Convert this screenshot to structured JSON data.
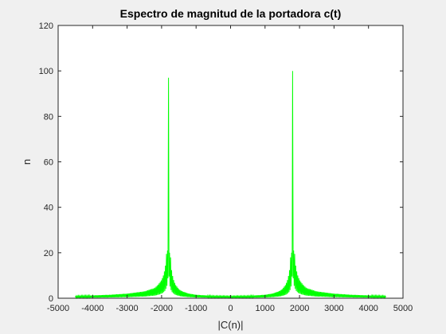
{
  "chart_data": {
    "type": "line",
    "title": "Espectro de magnitud de la portadora c(t)",
    "xlabel": "|C(n)|",
    "ylabel": "n",
    "xlim": [
      -5000,
      5000
    ],
    "ylim": [
      0,
      120
    ],
    "xticks": [
      -5000,
      -4000,
      -3000,
      -2000,
      -1000,
      0,
      1000,
      2000,
      3000,
      4000,
      5000
    ],
    "yticks": [
      0,
      20,
      40,
      60,
      80,
      100,
      120
    ],
    "grid": false,
    "line_color": "#00ff00",
    "series": [
      {
        "x_range": [
          -4500,
          4500
        ],
        "peaks": [
          {
            "x": -1800,
            "y": 97
          },
          {
            "x": 1800,
            "y": 100
          }
        ],
        "x": [
          -4500,
          -4000,
          -3500,
          -3000,
          -2500,
          -2200,
          -2100,
          -2000,
          -1950,
          -1900,
          -1870,
          -1850,
          -1830,
          -1815,
          -1800,
          -1785,
          -1770,
          -1750,
          -1730,
          -1700,
          -1650,
          -1600,
          -1500,
          -1400,
          -1200,
          -1000,
          -500,
          0,
          500,
          1000,
          1200,
          1400,
          1500,
          1600,
          1650,
          1700,
          1730,
          1750,
          1770,
          1785,
          1800,
          1815,
          1830,
          1850,
          1870,
          1900,
          1950,
          2000,
          2100,
          2200,
          2500,
          3000,
          3500,
          4000,
          4500
        ],
        "y": [
          1,
          1.2,
          1.5,
          2,
          3,
          4.5,
          6,
          8,
          10,
          13,
          17,
          22,
          21,
          35,
          97,
          38,
          20,
          21,
          15,
          11,
          8,
          6,
          4,
          3,
          2,
          1.5,
          1,
          0.9,
          1,
          1.5,
          2,
          3,
          4,
          6,
          8,
          11,
          15,
          21,
          20,
          38,
          100,
          35,
          21,
          22,
          17,
          13,
          10,
          8,
          6,
          4.5,
          3,
          2,
          1.5,
          1.2,
          1
        ]
      }
    ]
  }
}
